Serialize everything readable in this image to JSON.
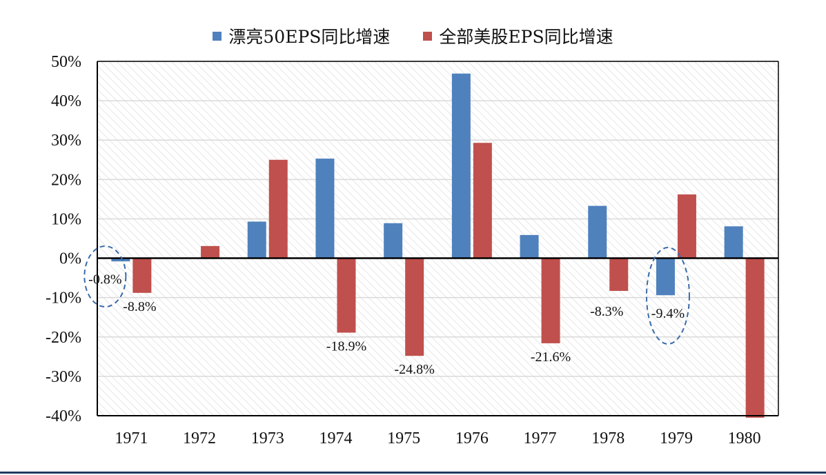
{
  "legend": {
    "items": [
      {
        "label": "漂亮50EPS同比增速",
        "color": "#4f81bd"
      },
      {
        "label": "全部美股EPS同比增速",
        "color": "#c0504d"
      }
    ]
  },
  "chart_data": {
    "type": "bar",
    "categories": [
      "1971",
      "1972",
      "1973",
      "1974",
      "1975",
      "1976",
      "1977",
      "1978",
      "1979",
      "1980"
    ],
    "series": [
      {
        "name": "漂亮50EPS同比增速",
        "color": "#4f81bd",
        "values": [
          -0.8,
          null,
          9.3,
          25.3,
          8.9,
          46.9,
          5.9,
          13.3,
          -9.4,
          8.1
        ]
      },
      {
        "name": "全部美股EPS同比增速",
        "color": "#c0504d",
        "values": [
          -8.8,
          3.1,
          25.0,
          -18.9,
          -24.8,
          29.3,
          -21.6,
          -8.3,
          16.2,
          -40.5
        ]
      }
    ],
    "data_labels": [
      {
        "category": "1971",
        "series": 0,
        "text": "-0.8%"
      },
      {
        "category": "1971",
        "series": 1,
        "text": "-8.8%"
      },
      {
        "category": "1974",
        "series": 1,
        "text": "-18.9%"
      },
      {
        "category": "1975",
        "series": 1,
        "text": "-24.8%"
      },
      {
        "category": "1977",
        "series": 1,
        "text": "-21.6%"
      },
      {
        "category": "1978",
        "series": 1,
        "text": "-8.3%"
      },
      {
        "category": "1979",
        "series": 0,
        "text": "-9.4%"
      }
    ],
    "highlighted_categories": [
      "1971",
      "1979"
    ],
    "yticks": [
      "50%",
      "40%",
      "30%",
      "20%",
      "10%",
      "0%",
      "-10%",
      "-20%",
      "-30%",
      "-40%"
    ],
    "ylim": [
      -40,
      50
    ],
    "grid": true,
    "legend_position": "top"
  }
}
